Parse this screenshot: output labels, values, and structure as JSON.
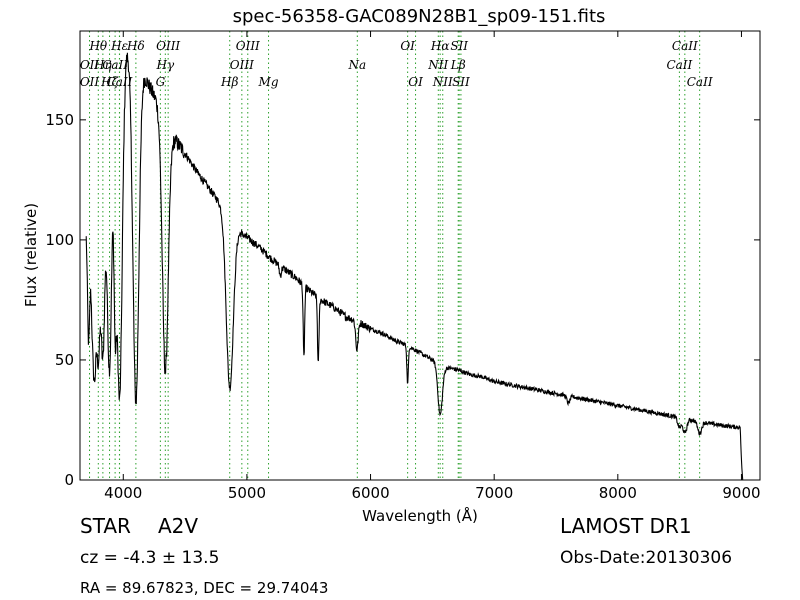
{
  "chart_data": {
    "type": "line",
    "title": "spec-56358-GAC089N28B1_sp09-151.fits",
    "xlabel": "Wavelength (Å)",
    "ylabel": "Flux (relative)",
    "xlim": [
      3650,
      9150
    ],
    "ylim": [
      0,
      187
    ],
    "xticks": [
      4000,
      5000,
      6000,
      7000,
      8000,
      9000
    ],
    "yticks": [
      0,
      50,
      100,
      150
    ],
    "grid": false,
    "legend": "none",
    "line_color": "#000000",
    "marker_color": "#2ca02c",
    "continuum": {
      "x": [
        3700,
        3800,
        3900,
        4000,
        4100,
        4200,
        4300,
        4400,
        4500,
        4600,
        4700,
        4800,
        4900,
        5000,
        5100,
        5200,
        5300,
        5400,
        5500,
        5600,
        5700,
        5800,
        5900,
        6000,
        6100,
        6200,
        6300,
        6400,
        6500,
        6600,
        6700,
        6800,
        6900,
        7000,
        7200,
        7400,
        7600,
        7800,
        8000,
        8200,
        8400,
        8600,
        8800,
        8960,
        8990,
        9000,
        9010
      ],
      "y": [
        108,
        140,
        170,
        182,
        178,
        165,
        155,
        143,
        136,
        128,
        121,
        114,
        105,
        101,
        97,
        92,
        88,
        84,
        79,
        75,
        72,
        68,
        66,
        63,
        61,
        58,
        56,
        53,
        50,
        47,
        46,
        44,
        43,
        41,
        39,
        37,
        35,
        33,
        31,
        29,
        27,
        25,
        23,
        22,
        22,
        8,
        0
      ]
    },
    "absorption_lines": [
      {
        "x": 3720,
        "depth": 55,
        "width": 10
      },
      {
        "x": 3750,
        "depth": 50,
        "width": 12
      },
      {
        "x": 3770,
        "depth": 65,
        "width": 12
      },
      {
        "x": 3798,
        "depth": 80,
        "width": 14
      },
      {
        "x": 3835,
        "depth": 95,
        "width": 16
      },
      {
        "x": 3889,
        "depth": 120,
        "width": 20
      },
      {
        "x": 3934,
        "depth": 70,
        "width": 10
      },
      {
        "x": 3970,
        "depth": 145,
        "width": 22
      },
      {
        "x": 4102,
        "depth": 145,
        "width": 24
      },
      {
        "x": 4340,
        "depth": 105,
        "width": 24
      },
      {
        "x": 4861,
        "depth": 70,
        "width": 28
      },
      {
        "x": 5270,
        "depth": 4,
        "width": 8
      },
      {
        "x": 5461,
        "depth": 30,
        "width": 6
      },
      {
        "x": 5577,
        "depth": 28,
        "width": 6
      },
      {
        "x": 5890,
        "depth": 12,
        "width": 10
      },
      {
        "x": 6300,
        "depth": 16,
        "width": 6
      },
      {
        "x": 6563,
        "depth": 21,
        "width": 18
      },
      {
        "x": 7600,
        "depth": 3,
        "width": 12
      },
      {
        "x": 8498,
        "depth": 4,
        "width": 14
      },
      {
        "x": 8542,
        "depth": 6,
        "width": 16
      },
      {
        "x": 8662,
        "depth": 5,
        "width": 16
      }
    ],
    "spectral_lines": [
      {
        "label": "Hθ",
        "x": 3798,
        "row": 1
      },
      {
        "label": "OII",
        "x": 3727,
        "row": 2
      },
      {
        "label": "OII",
        "x": 3727,
        "row": 3
      },
      {
        "label": "Hη",
        "x": 3835,
        "row": 2
      },
      {
        "label": "Hζ",
        "x": 3889,
        "row": 3
      },
      {
        "label": "CaII",
        "x": 3934,
        "row": 2
      },
      {
        "label": "CaII",
        "x": 3969,
        "row": 3
      },
      {
        "label": "Hε",
        "x": 3970,
        "row": 1
      },
      {
        "label": "Hδ",
        "x": 4102,
        "row": 1
      },
      {
        "label": "OIII",
        "x": 4363,
        "row": 1
      },
      {
        "label": "Hγ",
        "x": 4340,
        "row": 2
      },
      {
        "label": "G",
        "x": 4300,
        "row": 3
      },
      {
        "label": "OIII",
        "x": 5007,
        "row": 1
      },
      {
        "label": "OIII",
        "x": 4959,
        "row": 2
      },
      {
        "label": "Hβ",
        "x": 4861,
        "row": 3
      },
      {
        "label": "Mg",
        "x": 5175,
        "row": 3
      },
      {
        "label": "Na",
        "x": 5893,
        "row": 2
      },
      {
        "label": "OI",
        "x": 6300,
        "row": 1
      },
      {
        "label": "OI",
        "x": 6364,
        "row": 3
      },
      {
        "label": "Hα",
        "x": 6563,
        "row": 1
      },
      {
        "label": "NII",
        "x": 6548,
        "row": 2
      },
      {
        "label": "NII",
        "x": 6584,
        "row": 3
      },
      {
        "label": "SII",
        "x": 6717,
        "row": 1
      },
      {
        "label": "Lβ",
        "x": 6709,
        "row": 2
      },
      {
        "label": "SII",
        "x": 6731,
        "row": 3
      },
      {
        "label": "CaII",
        "x": 8542,
        "row": 1
      },
      {
        "label": "CaII",
        "x": 8498,
        "row": 2
      },
      {
        "label": "CaII",
        "x": 8662,
        "row": 3
      }
    ]
  },
  "info": {
    "class_label": "STAR",
    "subclass": "A2V",
    "cz": "cz = -4.3 ± 13.5",
    "coords": "RA = 89.67823, DEC = 29.74043",
    "survey": "LAMOST DR1",
    "obs_date": "Obs-Date:20130306"
  }
}
